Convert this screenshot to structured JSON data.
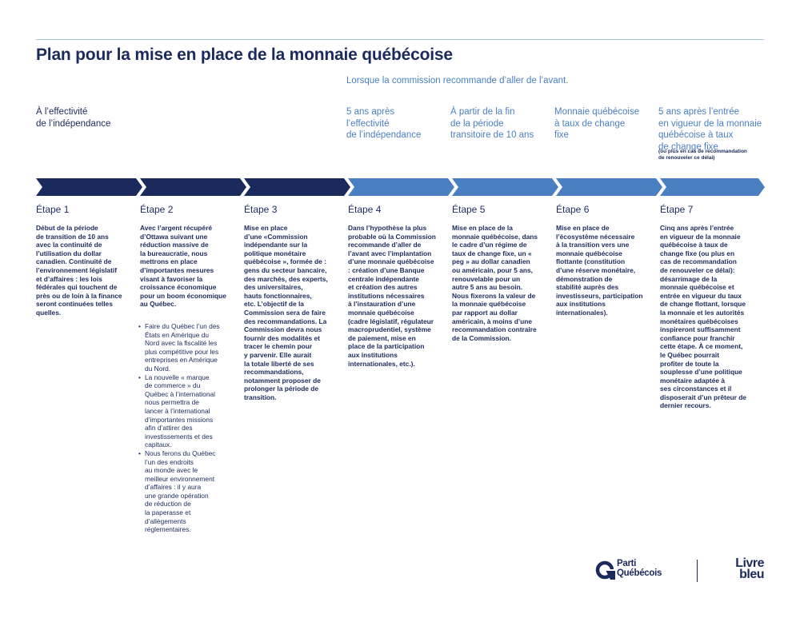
{
  "title": "Plan pour la mise en place de la monnaie québécoise",
  "subtitle": "Lorsque la commission recommande d’aller de l’avant.",
  "colors": {
    "dark": "#1b2a5c",
    "light": "#4a7fc1",
    "line": "#9cc7d8"
  },
  "phases": [
    {
      "label": "À l’effectivité\nde l’indépendance"
    },
    {
      "label": "5 ans après\nl’effectivité\nde l’indépendance"
    },
    {
      "label": "À partir de la fin\nde la période\ntransitoire de 10 ans"
    },
    {
      "label": "Monnaie québécoise\nà taux de change\nfixe"
    },
    {
      "label": "5 ans après l’entrée\nen vigueur de la monnaie\nquébécoise à taux\nde change fixe"
    }
  ],
  "phase_note": "(ou plus en cas de recommandation\nde renouveler ce délai)",
  "steps": [
    {
      "title": "Étape 1",
      "body": "Début de la période\nde transition de 10 ans\navec la continuité de\nl’utilisation du dollar\ncanadien. Continuité de\nl’environnement législatif\net d’affaires : les lois\nfédérales qui touchent de\nprès ou de loin à la finance\nseront continuées telles\nquelles."
    },
    {
      "title": "Étape 2",
      "body": "Avec l’argent récupéré\nd’Ottawa suivant une\nréduction massive de\nla bureaucratie, nous\nmettrons en place\nd’importantes mesures\nvisant à favoriser la\ncroissance économique\npour un boom économique\nau Québec."
    },
    {
      "title": "Étape 3",
      "body": "Mise en place\nd’une «Commission\nindépendante sur la\npolitique monétaire\nquébécoise », formée de :\ngens du secteur bancaire,\ndes marchés, des experts,\ndes universitaires,\nhauts fonctionnaires,\netc. L’objectif de la\nCommission sera de faire\ndes recommandations. La\nCommission devra nous\nfournir des modalités et\ntracer le chemin pour\ny parvenir. Elle aurait\nla totale liberté de ses\nrecommandations,\nnotamment proposer de\nprolonger la période de\ntransition."
    },
    {
      "title": "Étape 4",
      "body": "Dans l’hypothèse la plus\nprobable où la Commission\nrecommande d’aller de\nl’avant avec l’implantation\nd’une monnaie québécoise\n: création d’une Banque\ncentrale indépendante\net création des autres\ninstitutions nécessaires\nà l’instauration d’une\nmonnaie québécoise\n(cadre législatif, régulateur\nmacroprudentiel, système\nde paiement, mise en\nplace de la participation\naux institutions\ninternationales, etc.)."
    },
    {
      "title": "Étape 5",
      "body": "Mise en place de la\nmonnaie québécoise, dans\nle cadre d’un régime de\ntaux de change fixe, un «\npeg » au dollar canadien\nou américain, pour 5 ans,\nrenouvelable pour un\nautre 5 ans au besoin.\nNous fixerons la valeur de\nla monnaie québécoise\npar rapport au dollar\naméricain, à moins d’une\nrecommandation contraire\nde la Commission."
    },
    {
      "title": "Étape 6",
      "body": "Mise en place de\nl’écosystème nécessaire\nà la transition vers une\nmonnaie québécoise\nflottante (constitution\nd’une réserve monétaire,\ndémonstration de\nstabilité auprès des\ninvestisseurs, participation\naux institutions\ninternationales)."
    },
    {
      "title": "Étape 7",
      "body": "Cinq ans après l’entrée\nen vigueur de la monnaie\nquébécoise à taux de\nchange fixe (ou plus en\ncas de recommandation\nde renouveler ce délai):\ndésarrimage de la\nmonnaie québécoise et\nentrée en vigueur du taux\nde change flottant, lorsque\nla monnaie et les autorités\nmonétaires québécoises\ninspireront suffisamment\nconfiance pour franchir\ncette étape. À ce moment,\nle Québec pourrait\nprofiter de toute la\nsouplesse d’une politique\nmonétaire adaptée à\nses circonstances et il\ndisposerait d’un prêteur de\ndernier recours."
    }
  ],
  "step2_bullets": [
    "Faire du Québec l’un des\nÉtats en Amérique du\nNord avec la fiscalité les\nplus compétitive pour les\nentreprises en Amérique\ndu Nord.",
    "La nouvelle « marque\nde commerce » du\nQuébec à l’international\nnous permettra de\nlancer à l’international\nd’importantes missions\nafin d’attirer des\ninvestissements et des\ncapitaux.",
    "Nous ferons du Québec\nl’un des endroits\nau monde avec le\nmeilleur environnement\nd’affaires : il y aura\nune grande opération\nde réduction de\nla paperasse et\nd’allègements\nréglementaires."
  ],
  "footer": {
    "party_name": "Parti\nQuébécois",
    "doc_name": "Livre\nbleu",
    "logo_icon": "pq-logo-icon"
  }
}
